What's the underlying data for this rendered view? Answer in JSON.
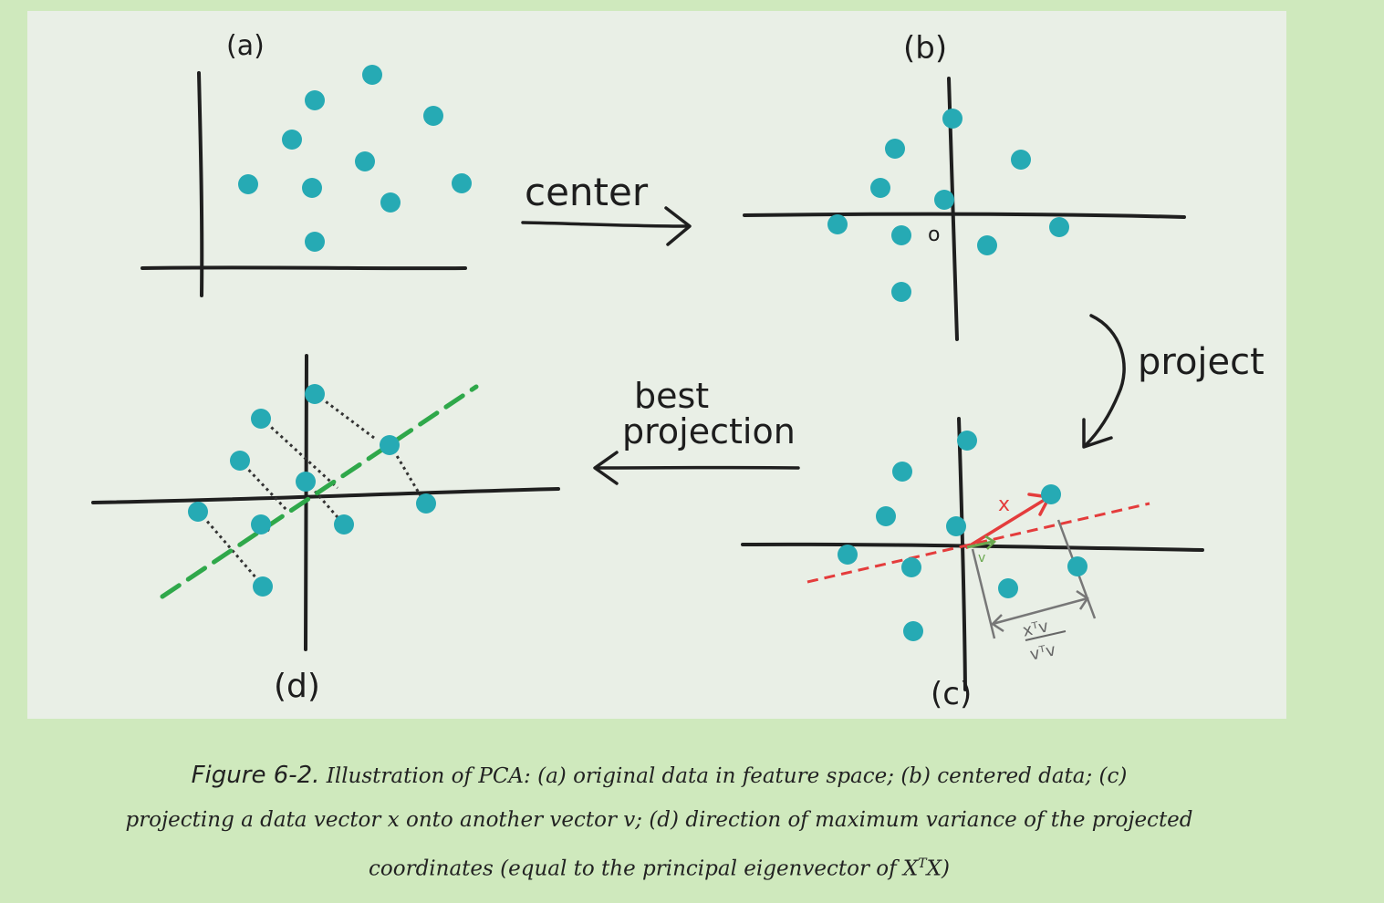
{
  "panels": {
    "a": {
      "label": "(a)"
    },
    "b": {
      "label": "(b)",
      "origin_label": "o"
    },
    "c": {
      "label": "(c)",
      "x_label": "x",
      "v_label": "v",
      "formula_top": "xᵀv",
      "formula_bottom": "vᵀv"
    },
    "d": {
      "label": "(d)"
    }
  },
  "arrows": {
    "center": "center",
    "project": "project",
    "best": "best",
    "projection": "projection"
  },
  "colors": {
    "background": "#cfe9bd",
    "panel": "#e9efe6",
    "dot": "#26aab4",
    "ink": "#1f1f1f",
    "red_vector": "#e43c3c",
    "green_line": "#2fa84a",
    "measure_gray": "#777777"
  },
  "caption": {
    "figure_label": "Figure 6-2.",
    "line1": "Illustration of PCA: (a) original data in feature space; (b) centered data; (c)",
    "line2": "projecting a data vector x onto another vector v; (d) direction of maximum variance of the projected",
    "line3_pre": "coordinates (equal to the principal eigenvector of X",
    "line3_sup": "T",
    "line3_post": "X)"
  }
}
